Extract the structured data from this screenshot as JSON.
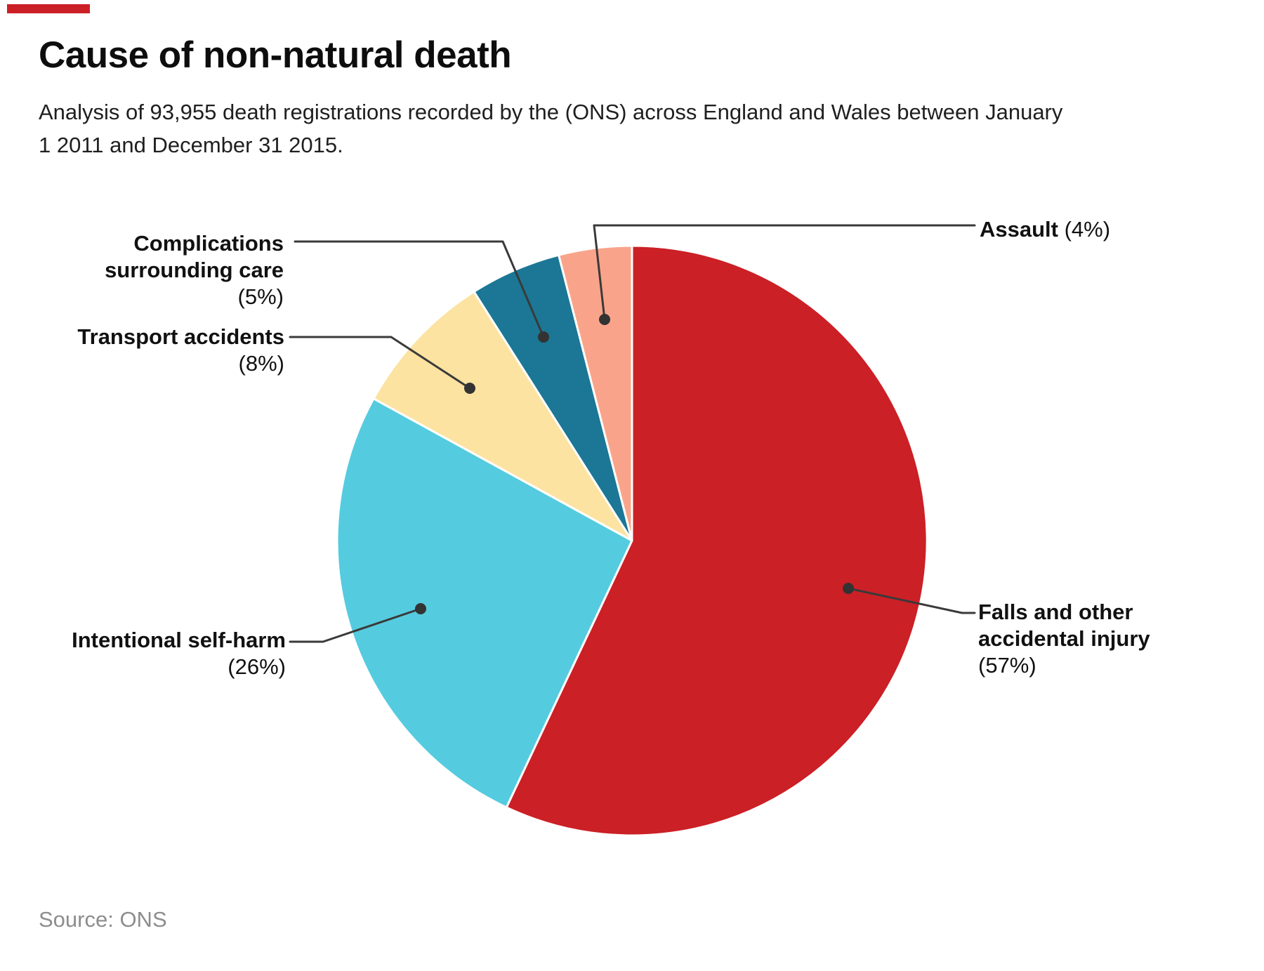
{
  "header": {
    "title": "Cause of non-natural death",
    "subtitle": "Analysis of 93,955 death registrations recorded by the (ONS) across England and Wales between January 1 2011 and December 31 2015."
  },
  "footer": {
    "source": "Source: ONS"
  },
  "colors": {
    "accent_red": "#cb2026",
    "leader_line": "#3a3a3a",
    "leader_dot": "#333333",
    "title_text": "#0d0d0d",
    "body_text": "#111111",
    "source_text": "#8d8d8d"
  },
  "chart_data": {
    "type": "pie",
    "title": "Cause of non-natural death",
    "unit": "percent of 93,955 death registrations",
    "start_angle": "12 o'clock",
    "direction": "clockwise",
    "legend_position": "none (direct callout labels with leader lines)",
    "slices": [
      {
        "label": "Falls and other accidental injury",
        "percent": 57,
        "color": "#cb2026"
      },
      {
        "label": "Intentional self-harm",
        "percent": 26,
        "color": "#55cbdf"
      },
      {
        "label": "Transport accidents",
        "percent": 8,
        "color": "#fce3a1"
      },
      {
        "label": "Complications surrounding care",
        "percent": 5,
        "color": "#1b7795"
      },
      {
        "label": "Assault",
        "percent": 4,
        "color": "#f9a48a"
      }
    ]
  },
  "callouts": {
    "assault": {
      "name": "Assault",
      "pct": "(4%)"
    },
    "complications": {
      "line1": "Complications",
      "line2": "surrounding care",
      "pct": "(5%)"
    },
    "transport": {
      "line1": "Transport accidents",
      "pct": "(8%)"
    },
    "self_harm": {
      "line1": "Intentional self-harm",
      "pct": "(26%)"
    },
    "falls": {
      "line1": "Falls and other",
      "line2": "accidental injury",
      "pct": "(57%)"
    }
  }
}
